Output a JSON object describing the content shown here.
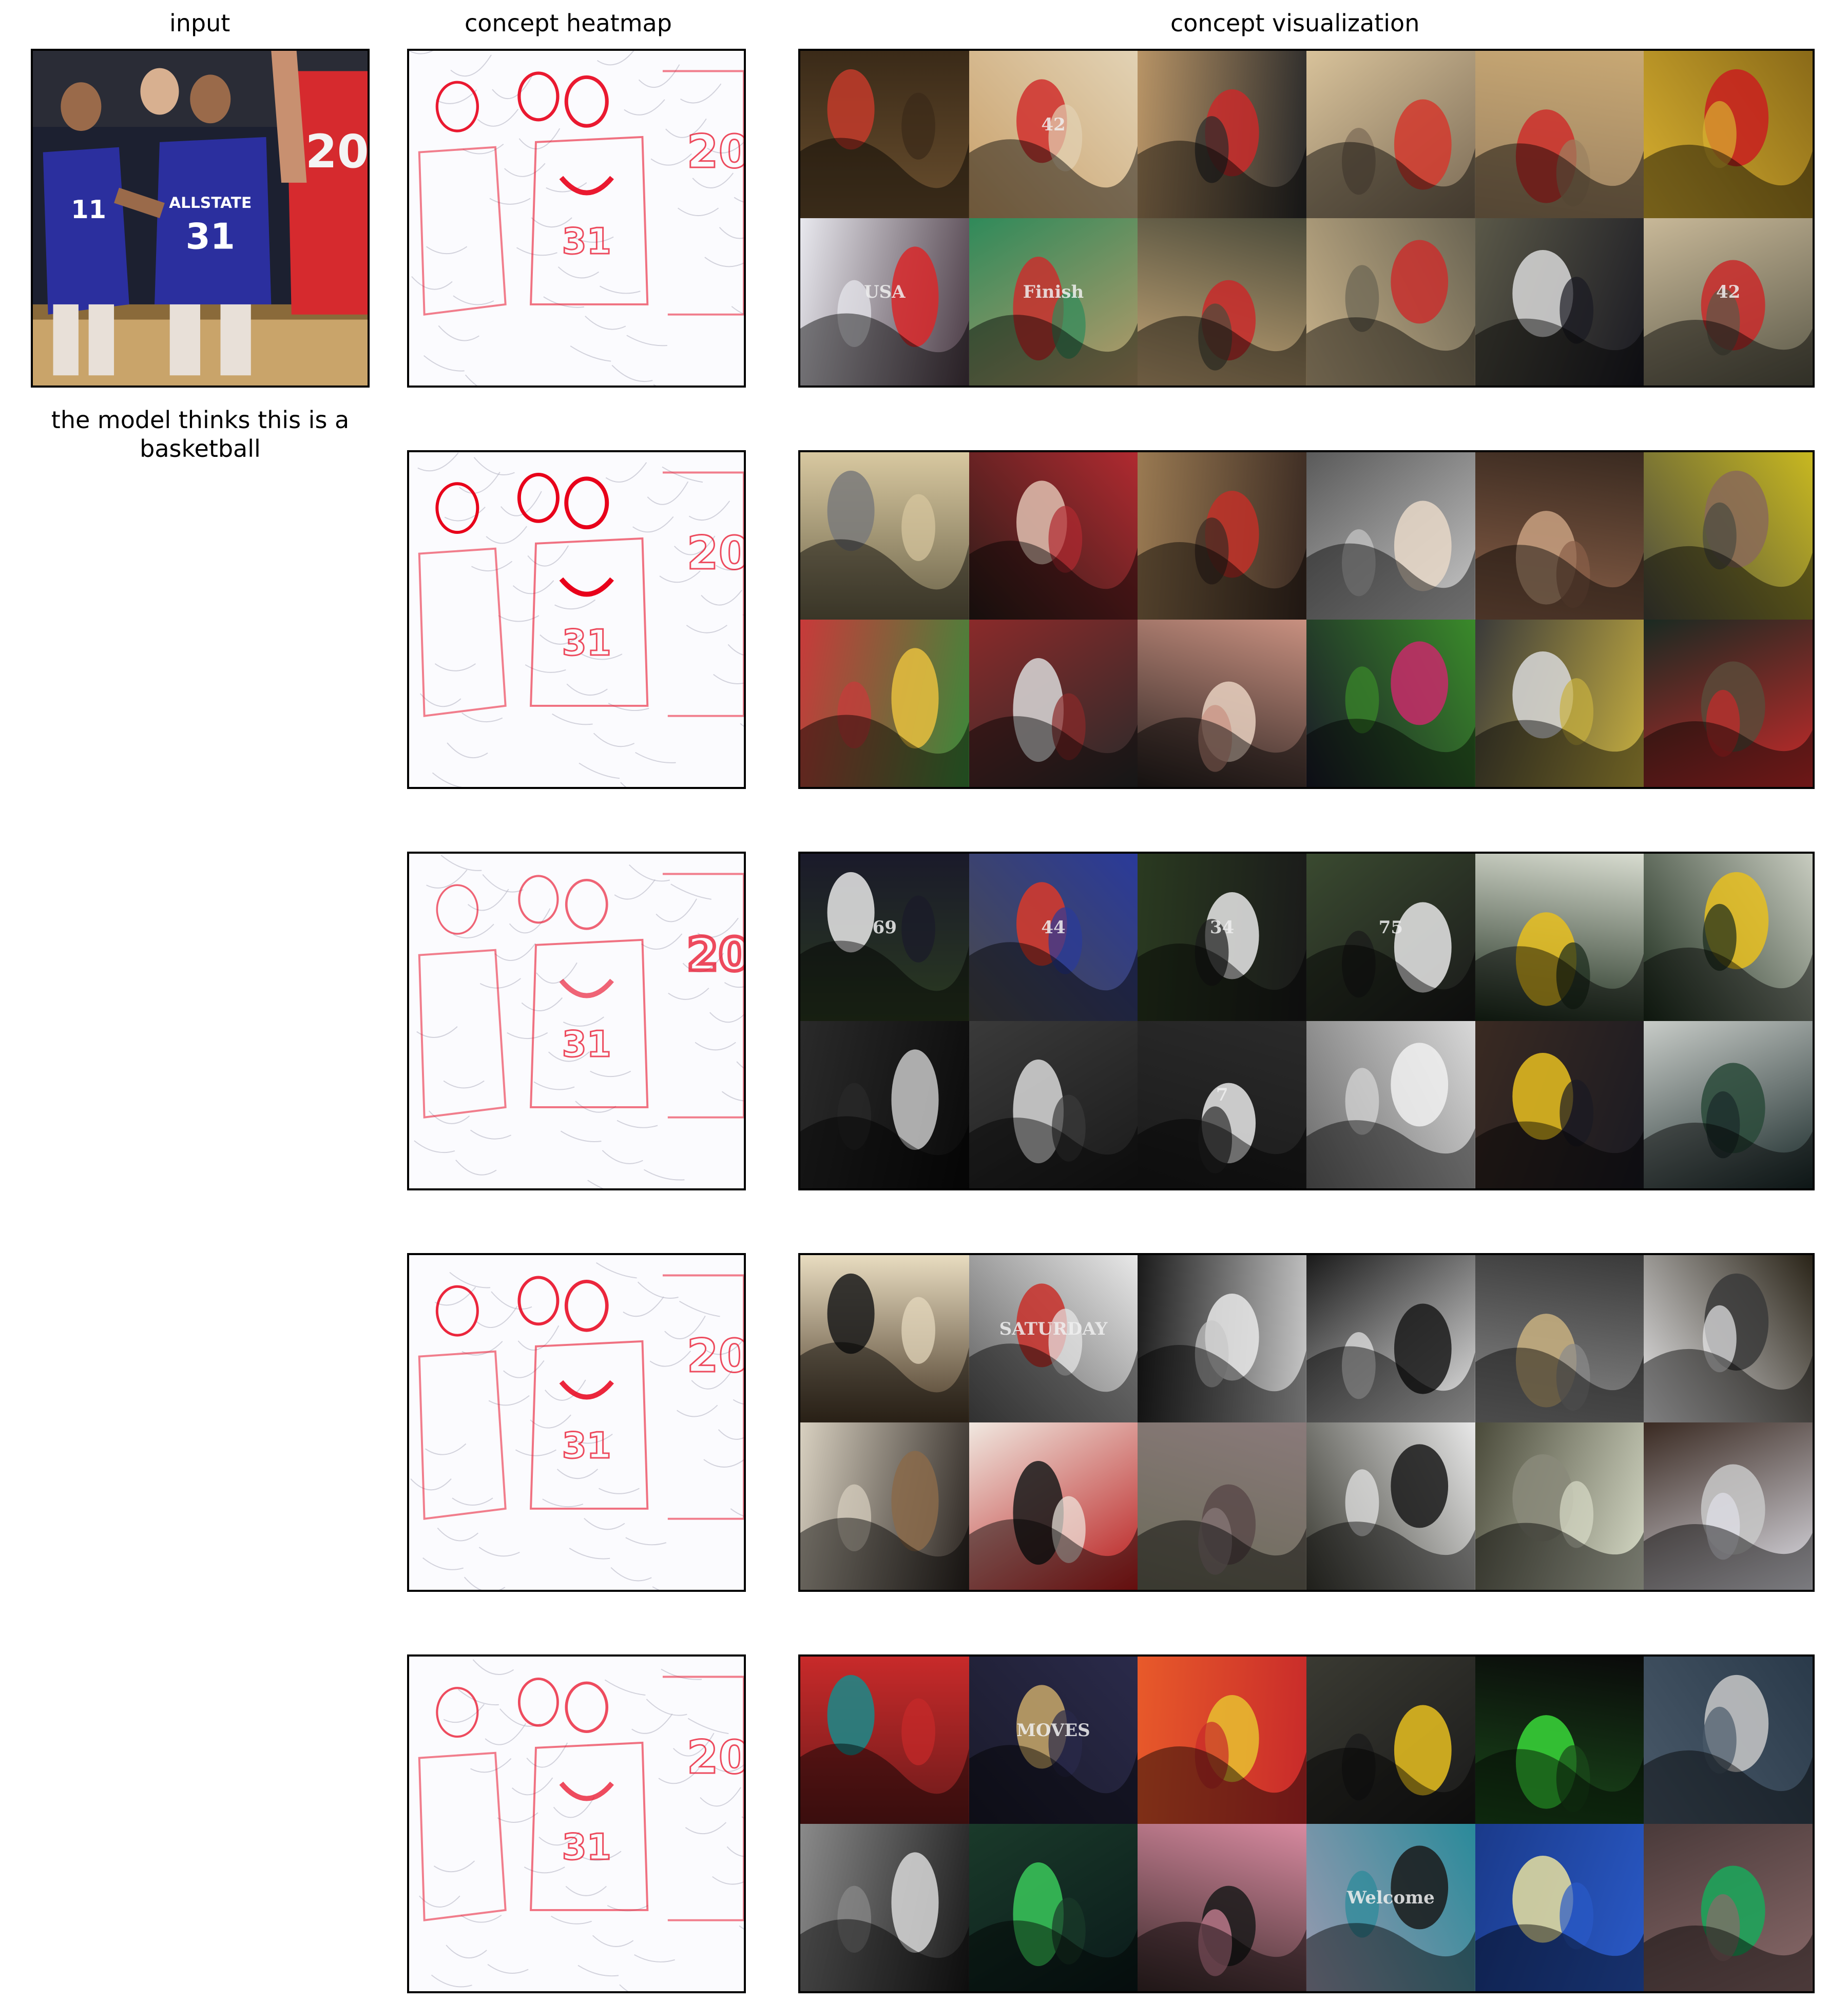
{
  "headers": {
    "input": "input",
    "heatmap": "concept heatmap",
    "visualization": "concept visualization"
  },
  "input_image": {
    "description_icon": "basketball-players-photo",
    "jersey_numbers": [
      "11",
      "31",
      "20"
    ],
    "jersey_text": "ALLSTATE"
  },
  "prediction": {
    "text": "the model thinks this is a basketball"
  },
  "colors": {
    "heat": "#e8001a",
    "jersey_blue": "#2b2f9e",
    "jersey_red": "#d62a2e",
    "floor": "#c9a46a",
    "frame": "#000000"
  },
  "concepts": [
    {
      "tiles": [
        {
          "c1": "#6a4f2e",
          "c2": "#3a2a18",
          "accent": "#c23b2a"
        },
        {
          "c1": "#c9a06a",
          "c2": "#e2d2b4",
          "accent": "#d0302e",
          "label": "42"
        },
        {
          "c1": "#b89466",
          "c2": "#2a2a2a",
          "accent": "#c82a2a"
        },
        {
          "c1": "#d8c29a",
          "c2": "#7a6a55",
          "accent": "#d23a2e"
        },
        {
          "c1": "#c8a874",
          "c2": "#9a8060",
          "accent": "#cc2f2c"
        },
        {
          "c1": "#8a6a18",
          "c2": "#d8b030",
          "accent": "#c81e1e"
        },
        {
          "c1": "#4a3a44",
          "c2": "#e8e8ee",
          "accent": "#d8282a",
          "label": "USA"
        },
        {
          "c1": "#b89a6a",
          "c2": "#2f8a5a",
          "accent": "#c8302e",
          "label": "Finish"
        },
        {
          "c1": "#c8a878",
          "c2": "#4a4a3a",
          "accent": "#c82a2a"
        },
        {
          "c1": "#c8b28a",
          "c2": "#6a6452",
          "accent": "#c8302e"
        },
        {
          "c1": "#5a5848",
          "c2": "#1a1a22",
          "accent": "#d8d8d8"
        },
        {
          "c1": "#c8b898",
          "c2": "#5a5848",
          "accent": "#c82a2a",
          "label": "42"
        }
      ]
    },
    {
      "tiles": [
        {
          "c1": "#6a6248",
          "c2": "#d8c8a0",
          "accent": "#7a7a7a"
        },
        {
          "c1": "#2a1c18",
          "c2": "#b02a30",
          "accent": "#e0c0b0"
        },
        {
          "c1": "#9a7a52",
          "c2": "#3a2a22",
          "accent": "#c03028"
        },
        {
          "c1": "#5a5a5a",
          "c2": "#c8c8c8",
          "accent": "#e8d8c8"
        },
        {
          "c1": "#3a2a20",
          "c2": "#8a6048",
          "accent": "#c8a080"
        },
        {
          "c1": "#c8b820",
          "c2": "#4a4a40",
          "accent": "#8a6a58"
        },
        {
          "c1": "#3a8a3a",
          "c2": "#c83a3a",
          "accent": "#e8c040"
        },
        {
          "c1": "#2a2a2a",
          "c2": "#8a2a2a",
          "accent": "#d8d8d8"
        },
        {
          "c1": "#2a2220",
          "c2": "#c89080",
          "accent": "#e8d0c0"
        },
        {
          "c1": "#1a1a28",
          "c2": "#3a8a2a",
          "accent": "#c82a6a"
        },
        {
          "c1": "#3a3a3a",
          "c2": "#c8b040",
          "accent": "#d8d8d8"
        },
        {
          "c1": "#1a2a22",
          "c2": "#c82a2a",
          "accent": "#5a4a3a"
        }
      ]
    },
    {
      "tiles": [
        {
          "c1": "#2a3a20",
          "c2": "#1a1a2a",
          "accent": "#e8e8e8",
          "label": "69"
        },
        {
          "c1": "#4a4a4a",
          "c2": "#2a3a9a",
          "accent": "#d83a2a",
          "label": "44"
        },
        {
          "c1": "#2a3a20",
          "c2": "#1a1a1a",
          "accent": "#e8e8e8",
          "label": "34"
        },
        {
          "c1": "#3a4a30",
          "c2": "#1a1a1a",
          "accent": "#e8e8e8",
          "label": "75"
        },
        {
          "c1": "#d8dcd0",
          "c2": "#1a2a1a",
          "accent": "#e8c020"
        },
        {
          "c1": "#c8ccc0",
          "c2": "#1a2a1a",
          "accent": "#e8c020"
        },
        {
          "c1": "#0a0a0a",
          "c2": "#2a2a2a",
          "accent": "#c8c8c8"
        },
        {
          "c1": "#1a1a1a",
          "c2": "#3a3a3a",
          "accent": "#d8d8d8"
        },
        {
          "c1": "#1a1a1a",
          "c2": "#2a2a2a",
          "accent": "#e8e8e8",
          "label": "7"
        },
        {
          "c1": "#6a6a6a",
          "c2": "#d8d8d8",
          "accent": "#f0f0f0"
        },
        {
          "c1": "#3a2a22",
          "c2": "#1a1a22",
          "accent": "#e8c020"
        },
        {
          "c1": "#c8ccc8",
          "c2": "#1a2a2a",
          "accent": "#2a4a3a"
        }
      ]
    },
    {
      "tiles": [
        {
          "c1": "#4a3a28",
          "c2": "#e8dcc0",
          "accent": "#1a1a1a"
        },
        {
          "c1": "#5a5a5a",
          "c2": "#e8e8e8",
          "accent": "#c8302a",
          "label": "SATURDAY"
        },
        {
          "c1": "#1a1a1a",
          "c2": "#c8c8c8",
          "accent": "#e8e8e8"
        },
        {
          "c1": "#1a1a1a",
          "c2": "#e8e8e8",
          "accent": "#1a1a1a"
        },
        {
          "c1": "#3a3a3a",
          "c2": "#8a8a8a",
          "accent": "#c8b080"
        },
        {
          "c1": "#2a2418",
          "c2": "#e8e8ea",
          "accent": "#3a3a3a"
        },
        {
          "c1": "#2a2420",
          "c2": "#d8d0c0",
          "accent": "#8a6a4a"
        },
        {
          "c1": "#b81a1a",
          "c2": "#f0e8e0",
          "accent": "#1a1a1a"
        },
        {
          "c1": "#6a6a58",
          "c2": "#8a7a7a",
          "accent": "#5a4a4a"
        },
        {
          "c1": "#3a3a32",
          "c2": "#e8e8e8",
          "accent": "#1a1a1a"
        },
        {
          "c1": "#4a4a3a",
          "c2": "#d8dcc8",
          "accent": "#8a8a7a"
        },
        {
          "c1": "#3a2a22",
          "c2": "#e0e0e8",
          "accent": "#c8c8c8"
        }
      ]
    },
    {
      "tiles": [
        {
          "c1": "#6a1a1a",
          "c2": "#c82a2a",
          "accent": "#1a8a8a"
        },
        {
          "c1": "#1a1a2a",
          "c2": "#2a2a4a",
          "accent": "#c8a86a",
          "label": "MOVES"
        },
        {
          "c1": "#e85a2a",
          "c2": "#c82a2a",
          "accent": "#e8c030"
        },
        {
          "c1": "#3a3a32",
          "c2": "#1a1a1a",
          "accent": "#e8c020"
        },
        {
          "c1": "#0a0a0a",
          "c2": "#1a4a1a",
          "accent": "#3ad83a"
        },
        {
          "c1": "#2a3a4a",
          "c2": "#4a5a6a",
          "accent": "#c8c8c8"
        },
        {
          "c1": "#1a1a1a",
          "c2": "#8a8a8a",
          "accent": "#d8d8d8"
        },
        {
          "c1": "#0a1a1a",
          "c2": "#1a3a2a",
          "accent": "#3ac85a"
        },
        {
          "c1": "#3a2a2a",
          "c2": "#d88aa0",
          "accent": "#1a1a1a"
        },
        {
          "c1": "#9a9ab0",
          "c2": "#2a8a9a",
          "accent": "#1a1a1a",
          "label": "Welcome"
        },
        {
          "c1": "#1a3a8a",
          "c2": "#2a5ac8",
          "accent": "#e8e0a0"
        },
        {
          "c1": "#4a3a3a",
          "c2": "#8a6a6a",
          "accent": "#1aa85a"
        }
      ]
    }
  ]
}
